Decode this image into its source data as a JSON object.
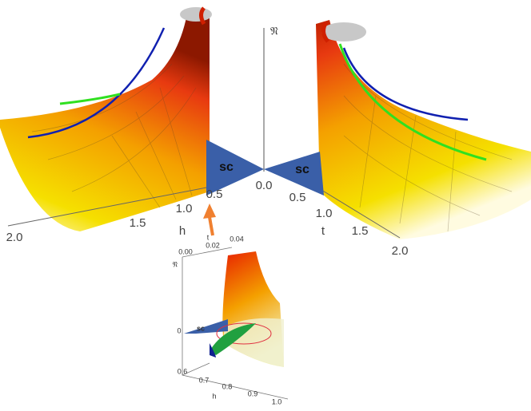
{
  "vertical_axis_label": "𝔑",
  "origin_label": "0.0",
  "left_panel": {
    "axis_label": "h",
    "ticks": [
      "0.5",
      "1.0",
      "1.5",
      "2.0"
    ],
    "region_label": "sc"
  },
  "right_panel": {
    "axis_label": "t",
    "ticks": [
      "0.5",
      "1.0",
      "1.5",
      "2.0"
    ],
    "region_label": "sc"
  },
  "inset": {
    "vertical_axis_label": "𝔑",
    "vertical_ticks": [
      "0"
    ],
    "region_label": "sc",
    "t_axis_label": "t",
    "t_ticks": [
      "0.00",
      "0.02",
      "0.04"
    ],
    "h_axis_label": "h",
    "h_ticks": [
      "0.6",
      "0.7",
      "0.8",
      "0.9",
      "1.0"
    ]
  }
}
